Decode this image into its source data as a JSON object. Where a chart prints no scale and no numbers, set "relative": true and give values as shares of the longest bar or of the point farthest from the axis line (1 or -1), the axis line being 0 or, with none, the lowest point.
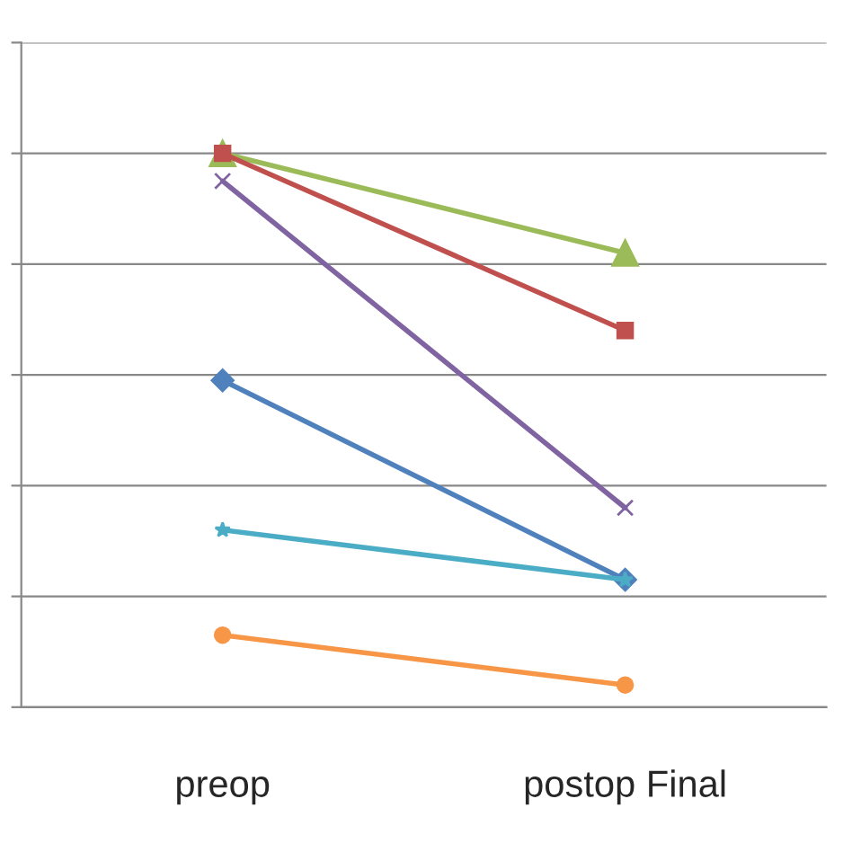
{
  "chart_data": {
    "type": "line",
    "relative": true,
    "categories": [
      "preop",
      "postop Final"
    ],
    "grid": "y",
    "legend": false,
    "series": [
      {
        "color": "#9bbb59",
        "marker": "triangle",
        "values": [
          1,
          0.82
        ]
      },
      {
        "color": "#c0504d",
        "marker": "square",
        "values": [
          1,
          0.68
        ]
      },
      {
        "color": "#8064a2",
        "marker": "cross",
        "values": [
          0.95,
          0.36
        ]
      },
      {
        "color": "#4f81bd",
        "marker": "diamond",
        "values": [
          0.59,
          0.23
        ]
      },
      {
        "color": "#4bacc6",
        "marker": "star",
        "values": [
          0.32,
          0.23
        ]
      },
      {
        "color": "#f79646",
        "marker": "circle",
        "values": [
          0.13,
          0.04
        ]
      }
    ]
  }
}
